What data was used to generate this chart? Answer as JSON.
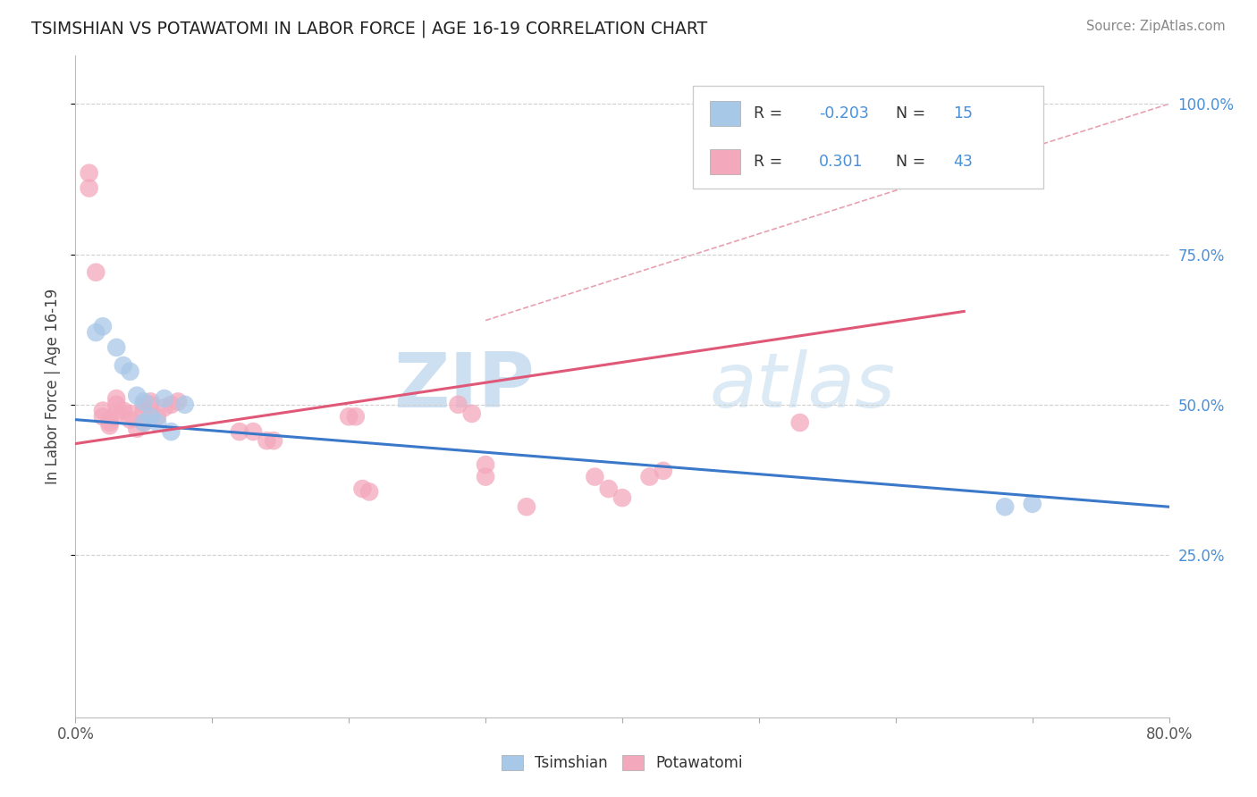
{
  "title": "TSIMSHIAN VS POTAWATOMI IN LABOR FORCE | AGE 16-19 CORRELATION CHART",
  "source_text": "Source: ZipAtlas.com",
  "ylabel": "In Labor Force | Age 16-19",
  "xlim": [
    0.0,
    0.8
  ],
  "ylim": [
    -0.02,
    1.08
  ],
  "xticks": [
    0.0,
    0.1,
    0.2,
    0.3,
    0.4,
    0.5,
    0.6,
    0.7,
    0.8
  ],
  "xticklabels": [
    "0.0%",
    "",
    "",
    "",
    "",
    "",
    "",
    "",
    "80.0%"
  ],
  "yticks_right": [
    0.25,
    0.5,
    0.75,
    1.0
  ],
  "ytick_right_labels": [
    "25.0%",
    "50.0%",
    "75.0%",
    "100.0%"
  ],
  "watermark_zip": "ZIP",
  "watermark_atlas": "atlas",
  "background_color": "#ffffff",
  "grid_color": "#d0d0d0",
  "tsimshian_color": "#a8c8e8",
  "potawatomi_color": "#f4a8bc",
  "tsimshian_line_color": "#3a78c9",
  "potawatomi_line_color": "#e05878",
  "diagonal_line_color": "#e8a0b0",
  "legend_r_tsimshian": "-0.203",
  "legend_n_tsimshian": "15",
  "legend_r_potawatomi": "0.301",
  "legend_n_potawatomi": "43",
  "tsimshian_scatter_x": [
    0.015,
    0.02,
    0.03,
    0.035,
    0.04,
    0.045,
    0.05,
    0.05,
    0.055,
    0.06,
    0.065,
    0.07,
    0.08,
    0.68,
    0.7
  ],
  "tsimshian_scatter_y": [
    0.62,
    0.63,
    0.595,
    0.565,
    0.555,
    0.515,
    0.505,
    0.47,
    0.48,
    0.47,
    0.51,
    0.455,
    0.5,
    0.33,
    0.335
  ],
  "potawatomi_scatter_x": [
    0.01,
    0.01,
    0.015,
    0.02,
    0.02,
    0.025,
    0.025,
    0.025,
    0.03,
    0.03,
    0.03,
    0.035,
    0.04,
    0.04,
    0.045,
    0.05,
    0.05,
    0.05,
    0.055,
    0.055,
    0.06,
    0.065,
    0.07,
    0.075,
    0.12,
    0.13,
    0.14,
    0.145,
    0.2,
    0.205,
    0.21,
    0.215,
    0.28,
    0.29,
    0.3,
    0.3,
    0.33,
    0.38,
    0.39,
    0.4,
    0.42,
    0.43,
    0.53
  ],
  "potawatomi_scatter_y": [
    0.86,
    0.885,
    0.72,
    0.48,
    0.49,
    0.475,
    0.465,
    0.47,
    0.485,
    0.5,
    0.51,
    0.49,
    0.475,
    0.485,
    0.46,
    0.5,
    0.49,
    0.47,
    0.5,
    0.505,
    0.48,
    0.495,
    0.5,
    0.505,
    0.455,
    0.455,
    0.44,
    0.44,
    0.48,
    0.48,
    0.36,
    0.355,
    0.5,
    0.485,
    0.38,
    0.4,
    0.33,
    0.38,
    0.36,
    0.345,
    0.38,
    0.39,
    0.47
  ],
  "tsimshian_line_x": [
    0.0,
    0.8
  ],
  "tsimshian_line_y": [
    0.475,
    0.33
  ],
  "potawatomi_line_x": [
    0.0,
    0.65
  ],
  "potawatomi_line_y": [
    0.435,
    0.655
  ],
  "diagonal_line_x": [
    0.3,
    0.8
  ],
  "diagonal_line_y": [
    0.64,
    1.0
  ]
}
